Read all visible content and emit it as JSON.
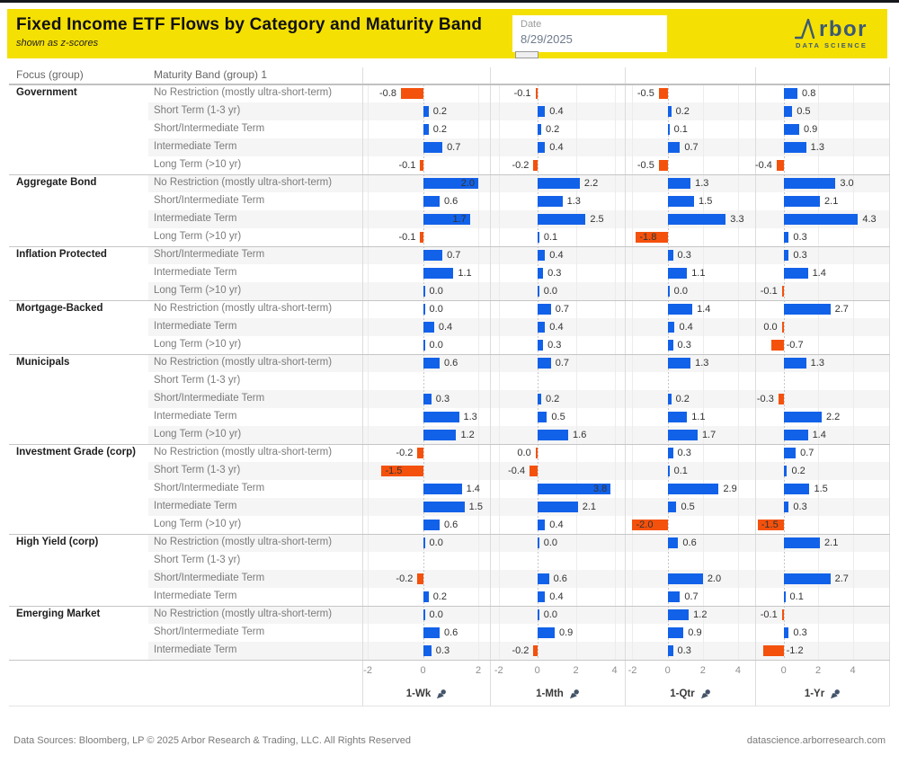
{
  "header": {
    "title": "Fixed Income ETF Flows by Category and Maturity Band",
    "subtitle": "shown as z-scores",
    "date_label": "Date",
    "date_value": "8/29/2025",
    "logo_text": "rbor",
    "logo_sub": "DATA SCIENCE"
  },
  "table": {
    "focus_header": "Focus (group)",
    "band_header": "Maturity Band (group) 1"
  },
  "footer": {
    "left": "Data Sources: Bloomberg, LP © 2025 Arbor Research & Trading, LLC. All Rights Reserved",
    "right": "datascience.arborresearch.com"
  },
  "chart_data": {
    "type": "bar",
    "orientation": "horizontal",
    "title": "Fixed Income ETF Flows by Category and Maturity Band",
    "subtitle": "shown as z-scores",
    "unit": "z-score",
    "positive_color": "#1261E9",
    "negative_color": "#F4510C",
    "columns": [
      "1-Wk",
      "1-Mth",
      "1-Qtr",
      "1-Yr"
    ],
    "panels": [
      {
        "name": "1-Wk",
        "ticks": [
          -2,
          0,
          2
        ],
        "axis_range": [
          -2.2,
          2.4
        ],
        "zero_pct": 47.2,
        "unit_pct": 21.8
      },
      {
        "name": "1-Mth",
        "ticks": [
          -2,
          0,
          2,
          4
        ],
        "axis_range": [
          -2.4,
          4.5
        ],
        "zero_pct": 34.7,
        "unit_pct": 14.4
      },
      {
        "name": "1-Qtr",
        "ticks": [
          -2,
          0,
          2,
          4
        ],
        "axis_range": [
          -2.4,
          5.0
        ],
        "zero_pct": 32.4,
        "unit_pct": 13.6
      },
      {
        "name": "1-Yr",
        "ticks": [
          0,
          2,
          4
        ],
        "axis_range": [
          -1.6,
          6.1
        ],
        "zero_pct": 20.7,
        "unit_pct": 13.0
      }
    ],
    "groups": [
      {
        "focus": "Government",
        "bands": [
          {
            "band": "No Restriction (mostly ultra-short-term)",
            "cells": [
              [
                -0.8
              ],
              [
                -0.1
              ],
              [
                -0.5
              ],
              [
                0.8
              ]
            ]
          },
          {
            "band": "Short Term (1-3 yr)",
            "cells": [
              [
                0.2
              ],
              [
                0.4
              ],
              [
                0.2
              ],
              [
                0.5
              ]
            ]
          },
          {
            "band": "Short/Intermediate Term",
            "cells": [
              [
                0.2
              ],
              [
                0.2
              ],
              [
                0.1
              ],
              [
                0.9
              ]
            ]
          },
          {
            "band": "Intermediate Term",
            "cells": [
              [
                0.7
              ],
              [
                0.4
              ],
              [
                0.7
              ],
              [
                1.3
              ]
            ]
          },
          {
            "band": "Long Term (>10 yr)",
            "cells": [
              [
                -0.1
              ],
              [
                -0.2
              ],
              [
                -0.5
              ],
              [
                -0.4
              ]
            ]
          }
        ]
      },
      {
        "focus": "Aggregate Bond",
        "bands": [
          {
            "band": "No Restriction (mostly ultra-short-term)",
            "cells": [
              [
                2.0,
                "in"
              ],
              [
                2.2
              ],
              [
                1.3
              ],
              [
                3.0
              ]
            ]
          },
          {
            "band": "Short/Intermediate Term",
            "cells": [
              [
                0.6
              ],
              [
                1.3
              ],
              [
                1.5
              ],
              [
                2.1
              ]
            ]
          },
          {
            "band": "Intermediate Term",
            "cells": [
              [
                1.7,
                "in"
              ],
              [
                2.5
              ],
              [
                3.3
              ],
              [
                4.3
              ]
            ]
          },
          {
            "band": "Long Term (>10 yr)",
            "cells": [
              [
                -0.1
              ],
              [
                0.1
              ],
              [
                -1.8,
                "in"
              ],
              [
                0.3
              ]
            ]
          }
        ]
      },
      {
        "focus": "Inflation Protected",
        "bands": [
          {
            "band": "Short/Intermediate Term",
            "cells": [
              [
                0.7
              ],
              [
                0.4
              ],
              [
                0.3
              ],
              [
                0.3
              ]
            ]
          },
          {
            "band": "Intermediate Term",
            "cells": [
              [
                1.1
              ],
              [
                0.3
              ],
              [
                1.1
              ],
              [
                1.4
              ]
            ]
          },
          {
            "band": "Long Term (>10 yr)",
            "cells": [
              [
                0
              ],
              [
                0
              ],
              [
                0
              ],
              [
                -0.1
              ]
            ]
          }
        ]
      },
      {
        "focus": "Mortgage-Backed",
        "bands": [
          {
            "band": "No Restriction (mostly ultra-short-term)",
            "cells": [
              [
                0
              ],
              [
                0.7
              ],
              [
                1.4
              ],
              [
                2.7
              ]
            ]
          },
          {
            "band": "Intermediate Term",
            "cells": [
              [
                0.4
              ],
              [
                0.4
              ],
              [
                0.4
              ],
              [
                0,
                "neg0"
              ]
            ]
          },
          {
            "band": "Long Term (>10 yr)",
            "cells": [
              [
                0
              ],
              [
                0.3
              ],
              [
                0.3
              ],
              [
                -0.7,
                "flip"
              ]
            ]
          }
        ]
      },
      {
        "focus": "Municipals",
        "bands": [
          {
            "band": "No Restriction (mostly ultra-short-term)",
            "cells": [
              [
                0.6
              ],
              [
                0.7
              ],
              [
                1.3
              ],
              [
                1.3
              ]
            ]
          },
          {
            "band": "Short Term (1-3 yr)",
            "cells": [
              null,
              null,
              null,
              null
            ]
          },
          {
            "band": "Short/Intermediate Term",
            "cells": [
              [
                0.3
              ],
              [
                0.2
              ],
              [
                0.2
              ],
              [
                -0.3
              ]
            ]
          },
          {
            "band": "Intermediate Term",
            "cells": [
              [
                1.3
              ],
              [
                0.5
              ],
              [
                1.1
              ],
              [
                2.2
              ]
            ]
          },
          {
            "band": "Long Term (>10 yr)",
            "cells": [
              [
                1.2
              ],
              [
                1.6
              ],
              [
                1.7
              ],
              [
                1.4
              ]
            ]
          }
        ]
      },
      {
        "focus": "Investment Grade (corp)",
        "bands": [
          {
            "band": "No Restriction (mostly ultra-short-term)",
            "cells": [
              [
                -0.2
              ],
              [
                0,
                "neg0"
              ],
              [
                0.3
              ],
              [
                0.7
              ]
            ]
          },
          {
            "band": "Short Term (1-3 yr)",
            "cells": [
              [
                -1.5,
                "in"
              ],
              [
                -0.4
              ],
              [
                0.1
              ],
              [
                0.2
              ]
            ]
          },
          {
            "band": "Short/Intermediate Term",
            "cells": [
              [
                1.4
              ],
              [
                3.8,
                "in"
              ],
              [
                2.9
              ],
              [
                1.5
              ]
            ]
          },
          {
            "band": "Intermediate Term",
            "cells": [
              [
                1.5
              ],
              [
                2.1
              ],
              [
                0.5
              ],
              [
                0.3
              ]
            ]
          },
          {
            "band": "Long Term (>10 yr)",
            "cells": [
              [
                0.6
              ],
              [
                0.4
              ],
              [
                -2.0,
                "in"
              ],
              [
                -1.5,
                "in"
              ]
            ]
          }
        ]
      },
      {
        "focus": "High Yield (corp)",
        "bands": [
          {
            "band": "No Restriction (mostly ultra-short-term)",
            "cells": [
              [
                0
              ],
              [
                0
              ],
              [
                0.6
              ],
              [
                2.1
              ]
            ]
          },
          {
            "band": "Short Term (1-3 yr)",
            "cells": [
              null,
              null,
              null,
              null
            ]
          },
          {
            "band": "Short/Intermediate Term",
            "cells": [
              [
                -0.2
              ],
              [
                0.6
              ],
              [
                2.0
              ],
              [
                2.7
              ]
            ]
          },
          {
            "band": "Intermediate Term",
            "cells": [
              [
                0.2
              ],
              [
                0.4
              ],
              [
                0.7
              ],
              [
                0.1
              ]
            ]
          }
        ]
      },
      {
        "focus": "Emerging Market",
        "bands": [
          {
            "band": "No Restriction (mostly ultra-short-term)",
            "cells": [
              [
                0
              ],
              [
                0
              ],
              [
                1.2
              ],
              [
                -0.1
              ]
            ]
          },
          {
            "band": "Short/Intermediate Term",
            "cells": [
              [
                0.6
              ],
              [
                0.9
              ],
              [
                0.9
              ],
              [
                0.3
              ]
            ]
          },
          {
            "band": "Intermediate Term",
            "cells": [
              [
                0.3
              ],
              [
                -0.2
              ],
              [
                0.3
              ],
              [
                -1.2,
                "flip"
              ]
            ]
          }
        ]
      }
    ]
  }
}
